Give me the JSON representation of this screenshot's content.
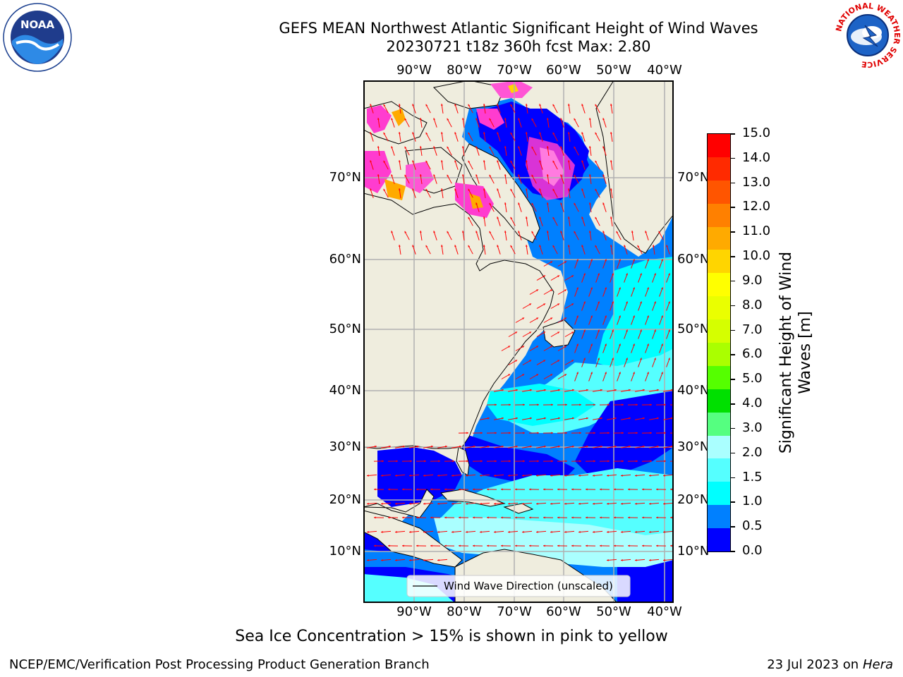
{
  "title": {
    "line1": "GEFS MEAN Northwest Atlantic Significant Height of Wind Waves",
    "line2": "20230721 t18z 360h fcst   Max: 2.80"
  },
  "logos": {
    "left": {
      "name": "noaa-logo",
      "text": "NOAA",
      "ring_text": "NATIONAL OCEANIC AND ATMOSPHERIC ADMINISTRATION · U.S. DEPARTMENT OF COMMERCE"
    },
    "right": {
      "name": "nws-logo",
      "ring_text": "NATIONAL WEATHER SERVICE"
    }
  },
  "map": {
    "lon_ticks": [
      "90°W",
      "80°W",
      "70°W",
      "60°W",
      "50°W",
      "40°W"
    ],
    "lat_ticks": [
      "70°N",
      "60°N",
      "50°N",
      "40°N",
      "30°N",
      "20°N",
      "10°N"
    ],
    "legend_label": "Wind Wave Direction (unscaled)",
    "colors": {
      "land": "#efedde",
      "ice": "#ffffff",
      "coast": "#000000",
      "arrow": "#ff0000",
      "grid": "#b0b0b0"
    }
  },
  "colorbar": {
    "label": "Significant Height of Wind Waves [m]",
    "label_lines": [
      "Significant Height of Wind",
      "Waves [m]"
    ],
    "ticks": [
      "15.0",
      "14.0",
      "13.0",
      "12.0",
      "11.0",
      "10.0",
      "9.0",
      "8.0",
      "7.0",
      "6.0",
      "5.0",
      "4.0",
      "3.0",
      "2.0",
      "1.5",
      "1.0",
      "0.5",
      "0.0"
    ],
    "colors_top_to_bottom": [
      "#ff0000",
      "#ff2a00",
      "#ff5500",
      "#ff8000",
      "#ffaa00",
      "#ffd500",
      "#ffff00",
      "#eaff00",
      "#d5ff00",
      "#aaff00",
      "#55ff00",
      "#00e000",
      "#55ff80",
      "#aaffff",
      "#55ffff",
      "#00ffff",
      "#0080ff",
      "#0000ff"
    ]
  },
  "note": "Sea Ice Concentration > 15% is shown in pink to yellow",
  "footer": {
    "left": "NCEP/EMC/Verification Post Processing Product Generation Branch",
    "right_date": "23 Jul 2023 on ",
    "right_host": "Hera"
  }
}
